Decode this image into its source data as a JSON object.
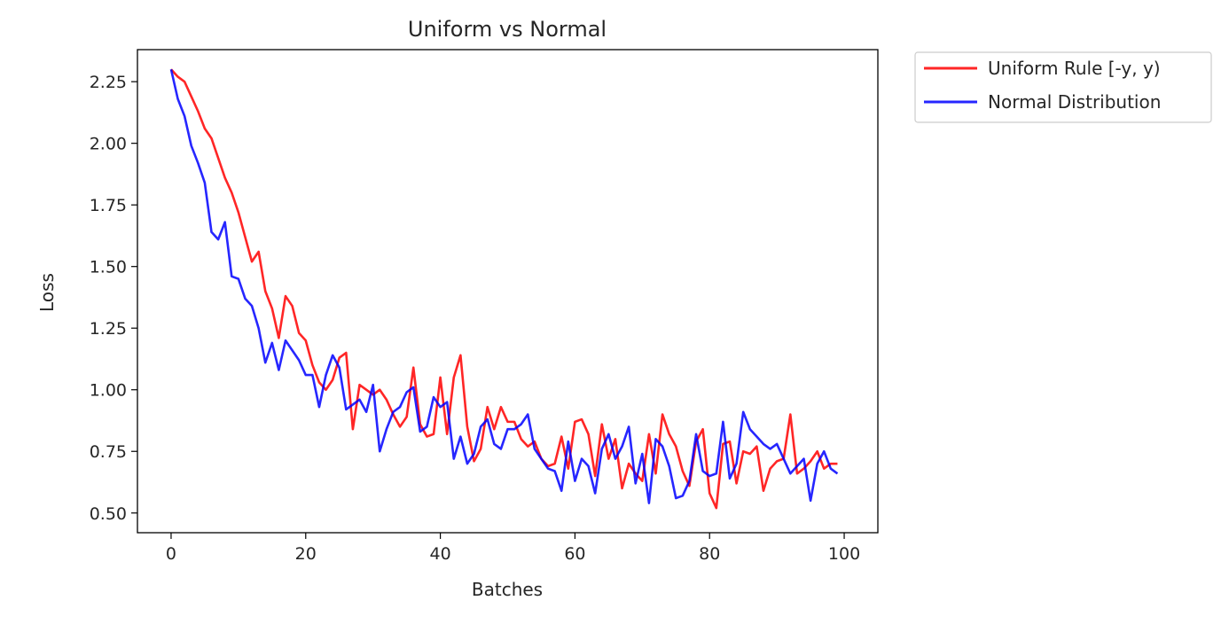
{
  "chart_data": {
    "type": "line",
    "title": "Uniform vs Normal",
    "xlabel": "Batches",
    "ylabel": "Loss",
    "xlim": [
      -5,
      105
    ],
    "ylim": [
      0.42,
      2.38
    ],
    "xticks": [
      0,
      20,
      40,
      60,
      80,
      100
    ],
    "xtick_labels": [
      "0",
      "20",
      "40",
      "60",
      "80",
      "100"
    ],
    "yticks": [
      0.5,
      0.75,
      1.0,
      1.25,
      1.5,
      1.75,
      2.0,
      2.25
    ],
    "ytick_labels": [
      "0.50",
      "0.75",
      "1.00",
      "1.25",
      "1.50",
      "1.75",
      "2.00",
      "2.25"
    ],
    "grid": false,
    "legend_position": "outside-top-right",
    "x": [
      0,
      1,
      2,
      3,
      4,
      5,
      6,
      7,
      8,
      9,
      10,
      11,
      12,
      13,
      14,
      15,
      16,
      17,
      18,
      19,
      20,
      21,
      22,
      23,
      24,
      25,
      26,
      27,
      28,
      29,
      30,
      31,
      32,
      33,
      34,
      35,
      36,
      37,
      38,
      39,
      40,
      41,
      42,
      43,
      44,
      45,
      46,
      47,
      48,
      49,
      50,
      51,
      52,
      53,
      54,
      55,
      56,
      57,
      58,
      59,
      60,
      61,
      62,
      63,
      64,
      65,
      66,
      67,
      68,
      69,
      70,
      71,
      72,
      73,
      74,
      75,
      76,
      77,
      78,
      79,
      80,
      81,
      82,
      83,
      84,
      85,
      86,
      87,
      88,
      89,
      90,
      91,
      92,
      93,
      94,
      95,
      96,
      97,
      98,
      99
    ],
    "series": [
      {
        "name": "Uniform Rule [-y, y)",
        "color": "#ff0000",
        "values": [
          2.3,
          2.27,
          2.25,
          2.19,
          2.13,
          2.06,
          2.02,
          1.94,
          1.86,
          1.8,
          1.72,
          1.62,
          1.52,
          1.56,
          1.4,
          1.33,
          1.21,
          1.38,
          1.34,
          1.23,
          1.2,
          1.1,
          1.03,
          1.0,
          1.04,
          1.13,
          1.15,
          0.84,
          1.02,
          1.0,
          0.98,
          1.0,
          0.96,
          0.9,
          0.85,
          0.89,
          1.09,
          0.86,
          0.81,
          0.82,
          1.05,
          0.82,
          1.05,
          1.14,
          0.85,
          0.71,
          0.76,
          0.93,
          0.84,
          0.93,
          0.87,
          0.87,
          0.8,
          0.77,
          0.79,
          0.72,
          0.69,
          0.7,
          0.81,
          0.68,
          0.87,
          0.88,
          0.82,
          0.65,
          0.86,
          0.72,
          0.8,
          0.6,
          0.7,
          0.66,
          0.63,
          0.82,
          0.66,
          0.9,
          0.82,
          0.77,
          0.67,
          0.61,
          0.79,
          0.84,
          0.58,
          0.52,
          0.78,
          0.79,
          0.62,
          0.75,
          0.74,
          0.77,
          0.59,
          0.68,
          0.71,
          0.72,
          0.9,
          0.66,
          0.68,
          0.71,
          0.75,
          0.68,
          0.7,
          0.7
        ]
      },
      {
        "name": "Normal Distribution",
        "color": "#0000ff",
        "values": [
          2.3,
          2.18,
          2.11,
          1.99,
          1.92,
          1.84,
          1.64,
          1.61,
          1.68,
          1.46,
          1.45,
          1.37,
          1.34,
          1.25,
          1.11,
          1.19,
          1.08,
          1.2,
          1.16,
          1.12,
          1.06,
          1.06,
          0.93,
          1.06,
          1.14,
          1.09,
          0.92,
          0.94,
          0.96,
          0.91,
          1.02,
          0.75,
          0.84,
          0.91,
          0.93,
          0.99,
          1.01,
          0.83,
          0.85,
          0.97,
          0.93,
          0.95,
          0.72,
          0.81,
          0.7,
          0.74,
          0.85,
          0.88,
          0.78,
          0.76,
          0.84,
          0.84,
          0.86,
          0.9,
          0.76,
          0.72,
          0.68,
          0.67,
          0.59,
          0.79,
          0.63,
          0.72,
          0.69,
          0.58,
          0.76,
          0.82,
          0.72,
          0.77,
          0.85,
          0.62,
          0.74,
          0.54,
          0.8,
          0.77,
          0.69,
          0.56,
          0.57,
          0.63,
          0.82,
          0.67,
          0.65,
          0.66,
          0.87,
          0.64,
          0.7,
          0.91,
          0.84,
          0.81,
          0.78,
          0.76,
          0.78,
          0.72,
          0.66,
          0.69,
          0.72,
          0.55,
          0.7,
          0.75,
          0.68,
          0.66
        ]
      }
    ]
  }
}
